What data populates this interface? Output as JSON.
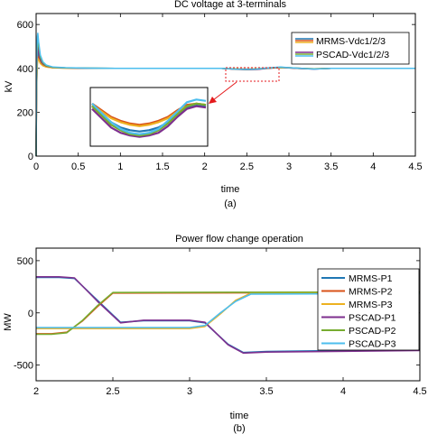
{
  "figure": {
    "panel_a_caption": "(a)",
    "panel_b_caption": "(b)"
  },
  "chart_data": [
    {
      "type": "line",
      "title": "DC voltage at 3-terminals",
      "xlabel": "time",
      "ylabel": "kV",
      "xlim": [
        0,
        4.5
      ],
      "ylim": [
        0,
        650
      ],
      "xticks": [
        "0",
        "0.5",
        "1",
        "1.5",
        "2",
        "2.5",
        "3",
        "3.5",
        "4",
        "4.5"
      ],
      "yticks": [
        "0",
        "200",
        "400",
        "600"
      ],
      "grid": false,
      "legend_position": "top-right",
      "legend": [
        {
          "label": "MRMS-Vdc1/2/3",
          "colors": [
            "#1f77b4",
            "#d95319",
            "#edb120"
          ]
        },
        {
          "label": "PSCAD-Vdc1/2/3",
          "colors": [
            "#7e2f8e",
            "#77ac30",
            "#4dbeee"
          ]
        }
      ],
      "x": [
        0,
        0.005,
        0.01,
        0.015,
        0.02,
        0.03,
        0.05,
        0.08,
        0.12,
        0.2,
        0.35,
        0.6,
        1.0,
        1.5,
        2.0,
        2.2,
        2.35,
        2.5,
        2.62,
        2.75,
        2.9,
        3.0,
        3.15,
        3.3,
        3.5,
        4.0,
        4.5
      ],
      "series": [
        {
          "name": "MRMS-Vdc1",
          "color": "#1f77b4",
          "values": [
            0,
            300,
            380,
            440,
            470,
            455,
            430,
            418,
            408,
            404,
            402,
            401,
            400,
            400,
            400,
            400,
            397,
            395,
            396,
            401,
            404,
            402,
            399,
            397,
            400,
            400,
            400
          ]
        },
        {
          "name": "MRMS-Vdc2",
          "color": "#d95319",
          "values": [
            0,
            290,
            370,
            430,
            455,
            445,
            425,
            415,
            407,
            403,
            401,
            400,
            400,
            400,
            400,
            400,
            398,
            397,
            398,
            402,
            405,
            403,
            400,
            398,
            400,
            400,
            400
          ]
        },
        {
          "name": "MRMS-Vdc3",
          "color": "#edb120",
          "values": [
            0,
            280,
            365,
            420,
            445,
            440,
            422,
            412,
            406,
            402,
            401,
            400,
            400,
            400,
            400,
            400,
            398,
            396,
            398,
            401,
            403,
            402,
            399,
            398,
            400,
            400,
            400
          ]
        },
        {
          "name": "PSCAD-Vdc1",
          "color": "#7e2f8e",
          "values": [
            0,
            320,
            420,
            500,
            510,
            470,
            440,
            420,
            410,
            404,
            402,
            400,
            400,
            400,
            400,
            400,
            396,
            394,
            395,
            400,
            404,
            402,
            399,
            397,
            400,
            400,
            400
          ]
        },
        {
          "name": "PSCAD-Vdc2",
          "color": "#77ac30",
          "values": [
            0,
            350,
            450,
            520,
            540,
            500,
            450,
            425,
            412,
            405,
            402,
            401,
            400,
            400,
            400,
            400,
            397,
            395,
            397,
            401,
            405,
            403,
            400,
            398,
            400,
            400,
            400
          ]
        },
        {
          "name": "PSCAD-Vdc3",
          "color": "#4dbeee",
          "values": [
            0,
            380,
            480,
            545,
            560,
            520,
            460,
            430,
            415,
            406,
            403,
            401,
            400,
            400,
            400,
            400,
            397,
            396,
            397,
            402,
            406,
            403,
            400,
            397,
            400,
            400,
            400
          ]
        }
      ],
      "inset": {
        "xlim": [
          2.2,
          2.8
        ],
        "ylim": [
          390,
          410
        ],
        "x": [
          2.2,
          2.25,
          2.3,
          2.35,
          2.4,
          2.45,
          2.5,
          2.55,
          2.6,
          2.65,
          2.7,
          2.75,
          2.8
        ],
        "series": [
          {
            "name": "MRMS-Vdc1",
            "color": "#1f77b4",
            "values": [
              404,
              401,
              398,
              396,
              395,
              394.5,
              395,
              396,
              398,
              401,
              403.5,
              404.5,
              404
            ]
          },
          {
            "name": "MRMS-Vdc2",
            "color": "#d95319",
            "values": [
              405,
              402.5,
              400,
              398.5,
              397.5,
              397,
              397.5,
              398.5,
              400,
              402.5,
              404.5,
              405,
              404.5
            ]
          },
          {
            "name": "MRMS-Vdc3",
            "color": "#edb120",
            "values": [
              404.5,
              402,
              399.5,
              398,
              397,
              396.5,
              397,
              398,
              399.5,
              402,
              404,
              405,
              404.5
            ]
          },
          {
            "name": "PSCAD-Vdc1",
            "color": "#7e2f8e",
            "values": [
              403,
              399.5,
              396,
              394,
              393,
              392.5,
              393,
              394,
              396.5,
              400,
              403,
              404,
              403.5
            ]
          },
          {
            "name": "PSCAD-Vdc2",
            "color": "#77ac30",
            "values": [
              404,
              400.5,
              397,
              395,
              393.5,
              393,
              393.5,
              395,
              397.5,
              401,
              404,
              405,
              404.5
            ]
          },
          {
            "name": "PSCAD-Vdc3",
            "color": "#4dbeee",
            "values": [
              405,
              401.5,
              398,
              395.5,
              394,
              393.5,
              394,
              395.5,
              398.5,
              402,
              405.5,
              406.5,
              406
            ]
          }
        ]
      }
    },
    {
      "type": "line",
      "title": "Power flow change operation",
      "xlabel": "time",
      "ylabel": "MW",
      "xlim": [
        2,
        4.5
      ],
      "ylim": [
        -650,
        620
      ],
      "xticks": [
        "2",
        "2.5",
        "3",
        "3.5",
        "4",
        "4.5"
      ],
      "yticks": [
        "-500",
        "0",
        "500"
      ],
      "grid": false,
      "legend_position": "right",
      "series": [
        {
          "name": "MRMS-P1",
          "color": "#1f77b4",
          "x": [
            2,
            2.15,
            2.25,
            2.4,
            2.55,
            2.7,
            3.0,
            3.1,
            3.25,
            3.35,
            3.5,
            4.5
          ],
          "values": [
            340,
            340,
            330,
            120,
            -90,
            -75,
            -75,
            -95,
            -300,
            -380,
            -370,
            -350
          ]
        },
        {
          "name": "MRMS-P2",
          "color": "#d95319",
          "x": [
            2,
            2.1,
            2.2,
            2.3,
            2.4,
            2.5,
            4.5
          ],
          "values": [
            -200,
            -200,
            -185,
            -80,
            60,
            190,
            195
          ]
        },
        {
          "name": "MRMS-P3",
          "color": "#edb120",
          "x": [
            2,
            2.2,
            2.5,
            3.0,
            3.1,
            3.2,
            3.3,
            3.4,
            4.5
          ],
          "values": [
            -150,
            -150,
            -150,
            -150,
            -130,
            -10,
            120,
            190,
            200
          ]
        },
        {
          "name": "PSCAD-P1",
          "color": "#7e2f8e",
          "x": [
            2,
            2.15,
            2.25,
            2.4,
            2.55,
            2.7,
            3.0,
            3.1,
            3.25,
            3.35,
            3.5,
            4.5
          ],
          "values": [
            345,
            345,
            335,
            110,
            -95,
            -70,
            -70,
            -90,
            -305,
            -385,
            -375,
            -360
          ]
        },
        {
          "name": "PSCAD-P2",
          "color": "#77ac30",
          "x": [
            2,
            2.1,
            2.2,
            2.3,
            2.4,
            2.5,
            4.5
          ],
          "values": [
            -205,
            -205,
            -190,
            -75,
            70,
            195,
            200
          ]
        },
        {
          "name": "PSCAD-P3",
          "color": "#4dbeee",
          "x": [
            2,
            2.2,
            2.5,
            3.0,
            3.1,
            3.2,
            3.3,
            3.4,
            4.5
          ],
          "values": [
            -140,
            -140,
            -140,
            -140,
            -120,
            0,
            110,
            180,
            185
          ]
        }
      ]
    }
  ]
}
